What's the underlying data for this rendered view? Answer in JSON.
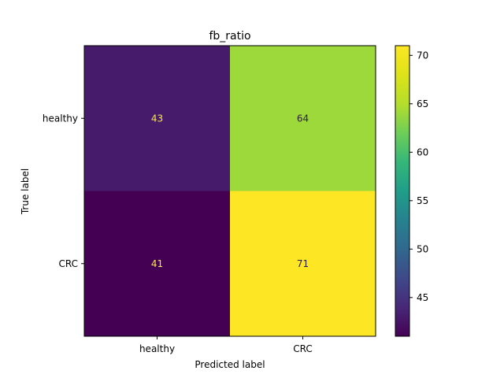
{
  "chart_data": {
    "type": "heatmap",
    "title": "fb_ratio",
    "xlabel": "Predicted label",
    "ylabel": "True label",
    "x_categories": [
      "healthy",
      "CRC"
    ],
    "y_categories": [
      "healthy",
      "CRC"
    ],
    "matrix": [
      [
        43,
        64
      ],
      [
        41,
        71
      ]
    ],
    "colormap": "viridis",
    "colorbar": {
      "range": [
        41,
        71
      ],
      "ticks": [
        "45",
        "50",
        "55",
        "60",
        "65",
        "70"
      ]
    }
  },
  "colors": {
    "dark_cell_text": "#f9e54a",
    "light_cell_text": "#2b1d3f"
  }
}
